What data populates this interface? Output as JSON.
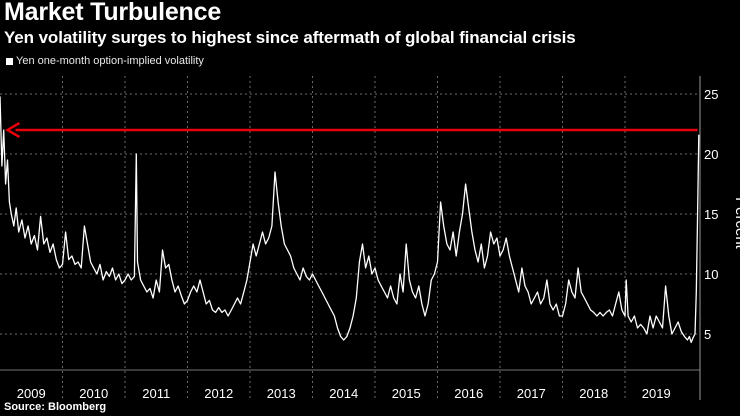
{
  "header": {
    "title": "Market Turbulence",
    "subtitle": "Yen volatility surges to highest since aftermath of global financial crisis"
  },
  "footer": {
    "source": "Source: Bloomberg"
  },
  "colors": {
    "background": "#000000",
    "series": "#ffffff",
    "arrow": "#e8000b",
    "grid": "#6b6b6b"
  },
  "chart_data": {
    "type": "line",
    "title": "Market Turbulence",
    "subtitle": "Yen volatility surges to highest since aftermath of global financial crisis",
    "xlabel": "",
    "ylabel": "Percent",
    "x_range": [
      2009.0,
      2020.2
    ],
    "ylim": [
      2.0,
      26.5
    ],
    "yticks": [
      5,
      10,
      15,
      20,
      25
    ],
    "xticks": [
      "2009",
      "2010",
      "2011",
      "2012",
      "2013",
      "2014",
      "2015",
      "2016",
      "2017",
      "2018",
      "2019"
    ],
    "grid": true,
    "legend": "top-left",
    "series": [
      {
        "name": "Yen one-month option-implied volatility",
        "x": [
          2009.0,
          2009.03,
          2009.06,
          2009.09,
          2009.12,
          2009.15,
          2009.18,
          2009.22,
          2009.26,
          2009.3,
          2009.35,
          2009.4,
          2009.45,
          2009.5,
          2009.55,
          2009.6,
          2009.65,
          2009.7,
          2009.75,
          2009.8,
          2009.85,
          2009.9,
          2009.95,
          2010.0,
          2010.05,
          2010.1,
          2010.15,
          2010.2,
          2010.25,
          2010.3,
          2010.35,
          2010.4,
          2010.45,
          2010.5,
          2010.55,
          2010.6,
          2010.65,
          2010.7,
          2010.75,
          2010.8,
          2010.85,
          2010.9,
          2010.95,
          2011.0,
          2011.05,
          2011.1,
          2011.15,
          2011.18,
          2011.2,
          2011.25,
          2011.3,
          2011.35,
          2011.4,
          2011.45,
          2011.5,
          2011.55,
          2011.6,
          2011.65,
          2011.7,
          2011.75,
          2011.8,
          2011.85,
          2011.9,
          2011.95,
          2012.0,
          2012.05,
          2012.1,
          2012.15,
          2012.2,
          2012.25,
          2012.3,
          2012.35,
          2012.4,
          2012.45,
          2012.5,
          2012.55,
          2012.6,
          2012.65,
          2012.7,
          2012.75,
          2012.8,
          2012.85,
          2012.9,
          2012.95,
          2013.0,
          2013.05,
          2013.1,
          2013.15,
          2013.2,
          2013.25,
          2013.3,
          2013.35,
          2013.4,
          2013.45,
          2013.5,
          2013.55,
          2013.6,
          2013.65,
          2013.7,
          2013.75,
          2013.8,
          2013.85,
          2013.9,
          2013.95,
          2014.0,
          2014.05,
          2014.1,
          2014.15,
          2014.2,
          2014.25,
          2014.3,
          2014.35,
          2014.4,
          2014.45,
          2014.5,
          2014.55,
          2014.6,
          2014.65,
          2014.7,
          2014.75,
          2014.8,
          2014.85,
          2014.9,
          2014.95,
          2015.0,
          2015.05,
          2015.1,
          2015.15,
          2015.2,
          2015.25,
          2015.3,
          2015.35,
          2015.4,
          2015.45,
          2015.5,
          2015.55,
          2015.6,
          2015.65,
          2015.7,
          2015.75,
          2015.8,
          2015.85,
          2015.9,
          2015.95,
          2016.0,
          2016.05,
          2016.1,
          2016.15,
          2016.2,
          2016.25,
          2016.3,
          2016.35,
          2016.4,
          2016.45,
          2016.5,
          2016.55,
          2016.6,
          2016.65,
          2016.7,
          2016.75,
          2016.8,
          2016.85,
          2016.9,
          2016.95,
          2017.0,
          2017.05,
          2017.1,
          2017.15,
          2017.2,
          2017.25,
          2017.3,
          2017.35,
          2017.4,
          2017.45,
          2017.5,
          2017.55,
          2017.6,
          2017.65,
          2017.7,
          2017.75,
          2017.8,
          2017.85,
          2017.9,
          2017.95,
          2018.0,
          2018.05,
          2018.1,
          2018.15,
          2018.2,
          2018.25,
          2018.3,
          2018.35,
          2018.4,
          2018.45,
          2018.5,
          2018.55,
          2018.6,
          2018.65,
          2018.7,
          2018.75,
          2018.8,
          2018.85,
          2018.9,
          2018.95,
          2019.0,
          2019.02,
          2019.05,
          2019.1,
          2019.15,
          2019.2,
          2019.25,
          2019.3,
          2019.35,
          2019.4,
          2019.45,
          2019.5,
          2019.55,
          2019.6,
          2019.65,
          2019.7,
          2019.75,
          2019.8,
          2019.85,
          2019.9,
          2019.95,
          2020.0,
          2020.03,
          2020.06,
          2020.09,
          2020.12,
          2020.14,
          2020.16,
          2020.18
        ],
        "y": [
          24.8,
          19.0,
          22.0,
          17.5,
          19.5,
          16.0,
          15.0,
          14.0,
          15.5,
          13.5,
          14.5,
          13.0,
          14.0,
          12.5,
          13.2,
          12.0,
          14.8,
          12.5,
          13.0,
          11.8,
          12.5,
          11.2,
          10.5,
          10.8,
          13.5,
          11.2,
          11.5,
          10.8,
          11.0,
          10.5,
          14.0,
          12.5,
          11.0,
          10.5,
          10.0,
          10.8,
          9.5,
          10.2,
          9.8,
          10.5,
          9.5,
          10.0,
          9.2,
          9.5,
          10.0,
          9.5,
          9.8,
          20.0,
          11.0,
          9.5,
          9.0,
          8.5,
          8.8,
          8.0,
          9.5,
          8.5,
          12.0,
          10.5,
          10.8,
          9.5,
          8.5,
          9.0,
          8.2,
          7.5,
          7.8,
          8.5,
          9.0,
          8.5,
          9.5,
          8.5,
          7.5,
          7.8,
          7.0,
          6.8,
          7.2,
          6.8,
          7.0,
          6.5,
          7.0,
          7.5,
          8.0,
          7.5,
          8.5,
          9.5,
          11.0,
          12.5,
          11.5,
          12.5,
          13.5,
          12.5,
          13.0,
          14.0,
          18.5,
          16.0,
          14.0,
          12.5,
          12.0,
          11.5,
          10.5,
          10.0,
          9.5,
          10.5,
          9.8,
          9.5,
          10.0,
          9.5,
          9.0,
          8.5,
          8.0,
          7.5,
          7.0,
          6.5,
          5.5,
          4.8,
          4.5,
          4.8,
          5.5,
          6.5,
          8.0,
          11.0,
          12.5,
          10.5,
          11.5,
          10.0,
          10.5,
          9.5,
          9.0,
          8.5,
          8.0,
          9.0,
          8.0,
          7.5,
          10.0,
          8.5,
          12.5,
          9.5,
          8.5,
          8.0,
          9.0,
          7.5,
          6.5,
          7.5,
          9.5,
          10.0,
          11.0,
          16.0,
          14.0,
          12.5,
          12.0,
          13.5,
          11.5,
          13.5,
          15.0,
          17.5,
          15.5,
          13.5,
          12.0,
          11.0,
          12.5,
          10.5,
          11.5,
          13.5,
          12.5,
          13.0,
          11.5,
          12.0,
          13.0,
          11.5,
          10.5,
          9.5,
          8.5,
          10.5,
          9.0,
          8.5,
          7.5,
          8.0,
          8.5,
          7.5,
          8.0,
          9.5,
          7.5,
          7.0,
          7.5,
          6.5,
          6.5,
          7.5,
          9.5,
          8.5,
          8.0,
          10.5,
          8.5,
          8.0,
          7.5,
          7.0,
          6.8,
          6.5,
          6.8,
          6.5,
          6.8,
          7.0,
          6.5,
          7.5,
          8.5,
          7.0,
          6.5,
          9.5,
          6.5,
          6.0,
          6.5,
          5.5,
          5.8,
          5.5,
          5.0,
          6.5,
          5.5,
          6.5,
          6.0,
          5.5,
          9.0,
          6.5,
          5.0,
          5.5,
          6.0,
          5.2,
          4.8,
          4.5,
          4.8,
          4.3,
          4.7,
          5.0,
          8.5,
          14.5,
          21.6
        ]
      }
    ],
    "annotations": [
      {
        "type": "arrow",
        "from": {
          "x": 2020.16,
          "y": 22.0
        },
        "to": {
          "x": 2009.12,
          "y": 22.0
        },
        "color": "#e8000b"
      }
    ]
  }
}
